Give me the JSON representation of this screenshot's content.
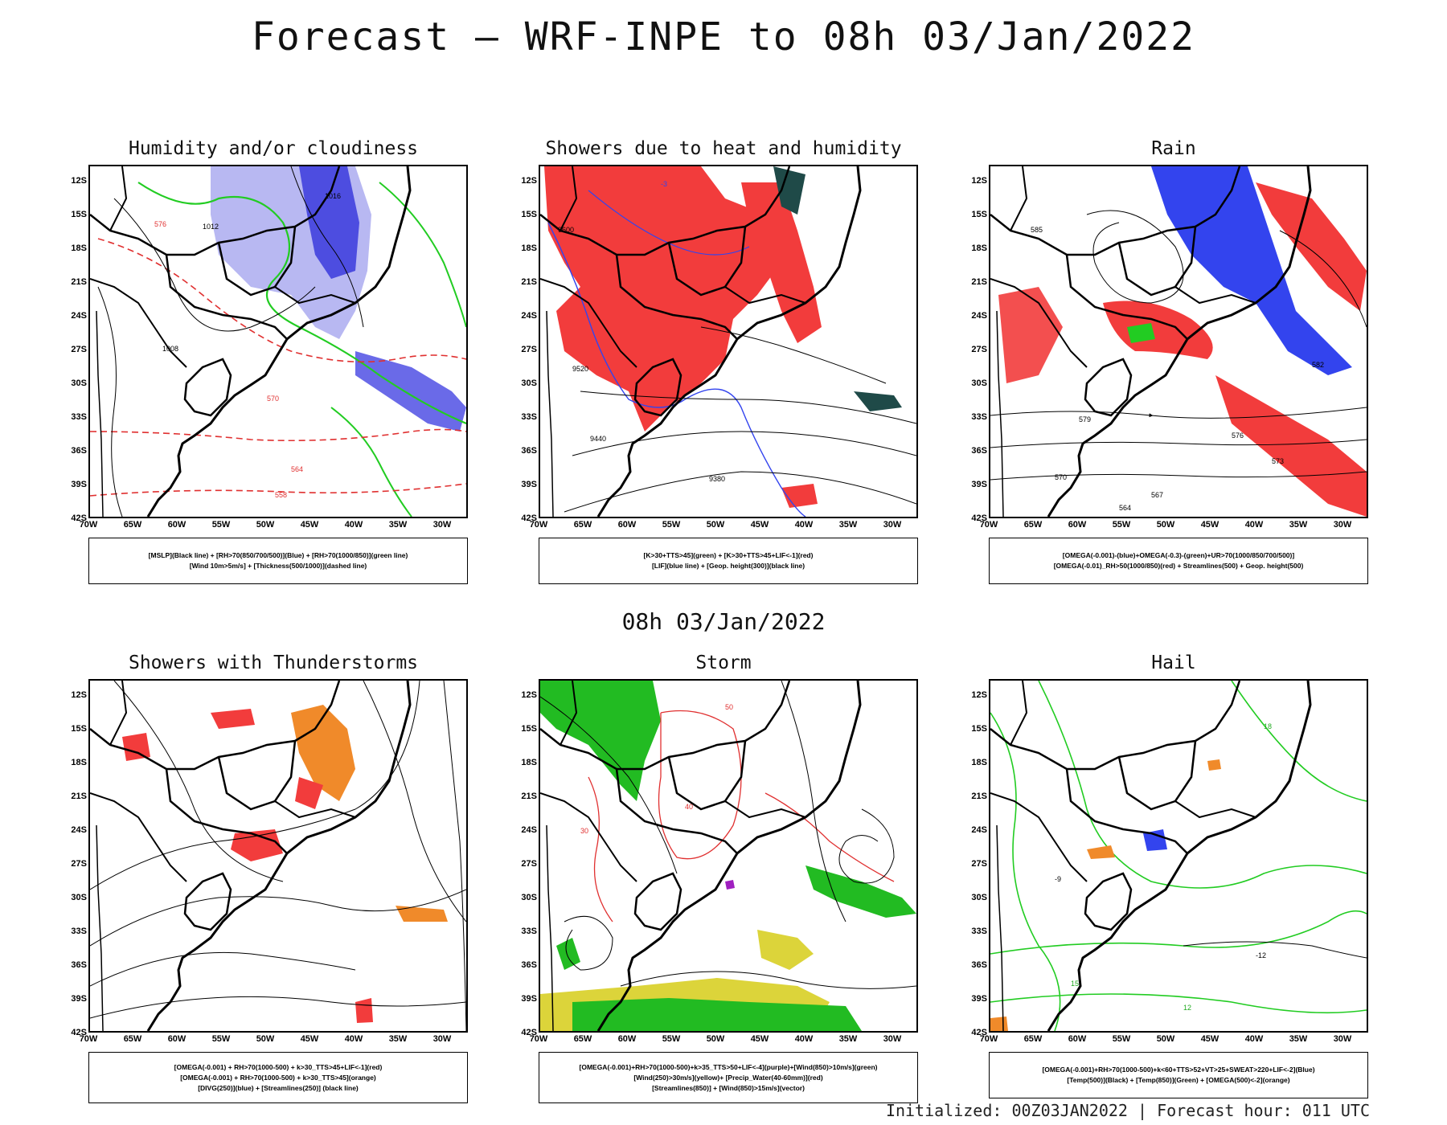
{
  "title": "Forecast – WRF-INPE to 08h 03/Jan/2022",
  "mid_label": "08h 03/Jan/2022",
  "footer": "Initialized: 00Z03JAN2022 | Forecast hour: 011 UTC",
  "lat_ticks": [
    "12S",
    "15S",
    "18S",
    "21S",
    "24S",
    "27S",
    "30S",
    "33S",
    "36S",
    "39S",
    "42S"
  ],
  "lon_ticks": [
    "70W",
    "65W",
    "60W",
    "55W",
    "50W",
    "45W",
    "40W",
    "35W",
    "30W"
  ],
  "colors": {
    "red": "#f23c3c",
    "blue": "#3344ee",
    "green": "#22cc22",
    "orange": "#f08a2a",
    "yellow": "#dcd43a",
    "darkteal": "#1f4a48",
    "lavender": "#9a9aee"
  },
  "panels": [
    {
      "id": "humidity",
      "title": "Humidity and/or cloudiness",
      "legend": [
        "[MSLP](Black line) + [RH>70(850/700/500)](Blue) + [RH>70(1000/850)](green line)",
        "[Wind 10m>5m/s] + [Thickness(500/1000)](dashed line)"
      ],
      "labels": [
        "1016",
        "1012",
        "1008",
        "576",
        "570",
        "564",
        "558"
      ]
    },
    {
      "id": "showers-heat",
      "title": "Showers due to heat and humidity",
      "legend": [
        "[K>30+TTS>45](green) + [K>30+TTS>45+LIF<-1](red)",
        "[LIF](blue line) + [Geop. height(300)](black line)"
      ],
      "labels": [
        "9600",
        "9520",
        "9440",
        "9380",
        "-3"
      ]
    },
    {
      "id": "rain",
      "title": "Rain",
      "legend": [
        "[OMEGA(-0.001)-(blue)+OMEGA(-0.3)-(green)+UR>70(1000/850/700/500)]",
        "[OMEGA(-0.01)_RH>50(1000/850)(red) + Streamlines(500) + Geop. height(500)"
      ],
      "labels": [
        "585",
        "582",
        "579",
        "576",
        "573",
        "570",
        "567",
        "564"
      ]
    },
    {
      "id": "thunder",
      "title": "Showers with Thunderstorms",
      "legend": [
        "[OMEGA(-0.001) + RH>70(1000-500) + k>30_TTS>45+LIF<-1](red)",
        "[OMEGA(-0.001) + RH>70(1000-500) + k>30_TTS>45](orange)",
        "[DIVG(250)](blue) + [Streamlines(250)] (black line)"
      ],
      "labels": []
    },
    {
      "id": "storm",
      "title": "Storm",
      "legend": [
        "[OMEGA(-0.001)+RH>70(1000-500)+k>35_TTS>50+LIF<-4](purple)+[Wind(850)>10m/s](green)",
        "[Wind(250)>30m/s](yellow)+ [Precip_Water(40-60mm)](red)",
        "[Streamlines(850)] + [Wind(850)>15m/s](vector)"
      ],
      "labels": [
        "50",
        "40",
        "30"
      ]
    },
    {
      "id": "hail",
      "title": "Hail",
      "legend": [
        "[OMEGA(-0.001)+RH>70(1000-500)+k<60+TTS>52+VT>25+SWEAT>220+LIF<-2](Blue)",
        "[Temp(500)](Black) + [Temp(850)](Green) + [OMEGA(500)<-2](orange)"
      ],
      "labels": [
        "-12",
        "-9",
        "15",
        "12",
        "18"
      ]
    }
  ]
}
